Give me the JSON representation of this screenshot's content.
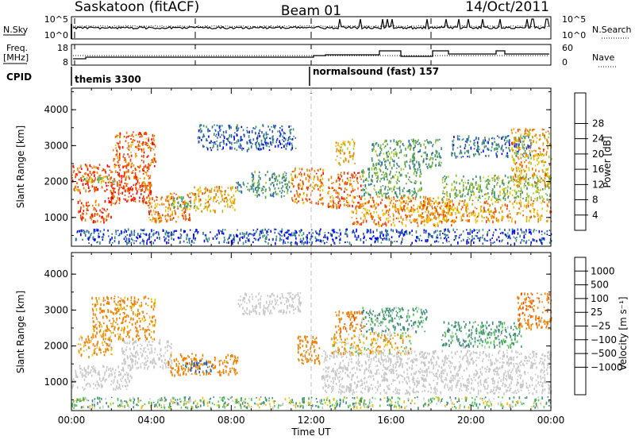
{
  "header": {
    "station": "Saskatoon (fitACF)",
    "beam": "Beam 01",
    "date": "14/Oct/2011"
  },
  "summary": {
    "nsky_label": "N.Sky",
    "nsky_ticks": [
      "10^5",
      "10^0"
    ],
    "nsearch_label": "N.Search",
    "nsearch_ticks": [
      "10^5",
      "10^0"
    ],
    "freq_label_line1": "Freq.",
    "freq_label_line2": "[MHz]",
    "freq_ticks": [
      "18",
      "8"
    ],
    "nave_label": "Nave",
    "nave_ticks": [
      "60",
      "0"
    ],
    "cpid_label": "CPID",
    "cpid_1": "themis 3300",
    "cpid_2": "normalsound (fast) 157"
  },
  "colors": {
    "power": [
      "#0000ff",
      "#2060b0",
      "#3c8c78",
      "#50a050",
      "#a0c820",
      "#f0c000",
      "#f08000",
      "#f04000",
      "#ff0000"
    ],
    "velocity": [
      "#ff0000",
      "#f04000",
      "#f08000",
      "#f0c000",
      "#c8c8c8",
      "#c8c8c8",
      "#50c850",
      "#3c8c78",
      "#2060b0",
      "#2040c0"
    ],
    "ground_scatter": "#c8c8c8"
  },
  "chart_data": [
    {
      "type": "heatmap",
      "panel": "power",
      "ylabel": "Slant Range [km]",
      "yticks": [
        "1000",
        "2000",
        "3000",
        "4000"
      ],
      "ylim": [
        200,
        4600
      ],
      "xlim": [
        0,
        24
      ],
      "xticks": [
        "00:00",
        "04:00",
        "08:00",
        "12:00",
        "16:00",
        "20:00",
        "00:00"
      ],
      "colorbar_label": "Power [dB]",
      "colorbar_ticks": [
        "4",
        "8",
        "12",
        "16",
        "20",
        "24",
        "28"
      ],
      "colorbar_range": [
        0,
        32
      ],
      "regions": [
        {
          "t0": 0.0,
          "t1": 4.0,
          "r0": 1700,
          "r1": 2500,
          "v": 26
        },
        {
          "t0": 2.0,
          "t1": 4.2,
          "r0": 2400,
          "r1": 3400,
          "v": 25
        },
        {
          "t0": 0.5,
          "t1": 2.2,
          "r0": 2000,
          "r1": 2200,
          "v": 14
        },
        {
          "t0": 0.3,
          "t1": 2.0,
          "r0": 900,
          "r1": 1500,
          "v": 27
        },
        {
          "t0": 1.8,
          "t1": 4.0,
          "r0": 1400,
          "r1": 2000,
          "v": 26
        },
        {
          "t0": 3.8,
          "t1": 6.0,
          "r0": 900,
          "r1": 1700,
          "v": 24
        },
        {
          "t0": 5.0,
          "t1": 6.2,
          "r0": 1300,
          "r1": 1600,
          "v": 12
        },
        {
          "t0": 6.0,
          "t1": 8.2,
          "r0": 1200,
          "r1": 1900,
          "v": 21
        },
        {
          "t0": 8.2,
          "t1": 9.4,
          "r0": 1700,
          "r1": 2000,
          "v": 10
        },
        {
          "t0": 6.3,
          "t1": 11.2,
          "r0": 2900,
          "r1": 3600,
          "v": 6
        },
        {
          "t0": 9.0,
          "t1": 11.0,
          "r0": 1600,
          "r1": 2300,
          "v": 10
        },
        {
          "t0": 11.0,
          "t1": 12.6,
          "r0": 1400,
          "r1": 2400,
          "v": 24
        },
        {
          "t0": 12.8,
          "t1": 14.5,
          "r0": 1300,
          "r1": 2300,
          "v": 25
        },
        {
          "t0": 13.2,
          "t1": 14.2,
          "r0": 2500,
          "r1": 3200,
          "v": 20
        },
        {
          "t0": 14.0,
          "t1": 19.0,
          "r0": 800,
          "r1": 1600,
          "v": 23
        },
        {
          "t0": 14.5,
          "t1": 17.5,
          "r0": 1600,
          "r1": 2400,
          "v": 12
        },
        {
          "t0": 15.0,
          "t1": 18.5,
          "r0": 2400,
          "r1": 3200,
          "v": 11
        },
        {
          "t0": 17.5,
          "t1": 24.0,
          "r0": 900,
          "r1": 1500,
          "v": 22
        },
        {
          "t0": 18.5,
          "t1": 24.0,
          "r0": 1500,
          "r1": 2200,
          "v": 14
        },
        {
          "t0": 19.0,
          "t1": 23.0,
          "r0": 2700,
          "r1": 3300,
          "v": 7
        },
        {
          "t0": 22.0,
          "t1": 24.0,
          "r0": 1900,
          "r1": 3500,
          "v": 21
        },
        {
          "t0": 0.0,
          "t1": 24.0,
          "r0": 300,
          "r1": 700,
          "v": 5
        }
      ]
    },
    {
      "type": "heatmap",
      "panel": "velocity",
      "ylabel": "Slant Range [km]",
      "yticks": [
        "1000",
        "2000",
        "3000",
        "4000"
      ],
      "ylim": [
        200,
        4600
      ],
      "xlim": [
        0,
        24
      ],
      "xticks": [
        "00:00",
        "04:00",
        "08:00",
        "12:00",
        "16:00",
        "20:00",
        "00:00"
      ],
      "xlabel": "Time UT",
      "colorbar_label": "Velocity [m s⁻¹]",
      "colorbar_ticks": [
        "1000",
        "500",
        "100",
        "25",
        "−25",
        "−100",
        "−500",
        "−1000"
      ],
      "colorbar_range": [
        -1200,
        1200
      ],
      "regions": [
        {
          "t0": 0.0,
          "t1": 3.0,
          "r0": 800,
          "r1": 1500,
          "v": 0,
          "gs": true
        },
        {
          "t0": 2.5,
          "t1": 5.0,
          "r0": 1400,
          "r1": 2200,
          "v": 0,
          "gs": true
        },
        {
          "t0": 1.0,
          "t1": 4.2,
          "r0": 2200,
          "r1": 3400,
          "v": -200
        },
        {
          "t0": 0.3,
          "t1": 2.0,
          "r0": 1700,
          "r1": 2300,
          "v": -150
        },
        {
          "t0": 4.8,
          "t1": 8.3,
          "r0": 1200,
          "r1": 1800,
          "v": -300
        },
        {
          "t0": 5.5,
          "t1": 7.0,
          "r0": 1300,
          "r1": 1600,
          "v": 600
        },
        {
          "t0": 8.3,
          "t1": 11.5,
          "r0": 2900,
          "r1": 3500,
          "v": 0,
          "gs": true
        },
        {
          "t0": 11.3,
          "t1": 12.5,
          "r0": 1500,
          "r1": 2300,
          "v": -300
        },
        {
          "t0": 13.2,
          "t1": 14.6,
          "r0": 2400,
          "r1": 3000,
          "v": -400
        },
        {
          "t0": 12.5,
          "t1": 24.0,
          "r0": 700,
          "r1": 1900,
          "v": 0,
          "gs": true
        },
        {
          "t0": 13.0,
          "t1": 17.0,
          "r0": 1800,
          "r1": 2400,
          "v": -80
        },
        {
          "t0": 14.5,
          "t1": 17.8,
          "r0": 2400,
          "r1": 3100,
          "v": 150
        },
        {
          "t0": 18.5,
          "t1": 22.5,
          "r0": 2000,
          "r1": 2700,
          "v": 150
        },
        {
          "t0": 22.3,
          "t1": 24.0,
          "r0": 2500,
          "r1": 3500,
          "v": -400
        },
        {
          "t0": 0.0,
          "t1": 24.0,
          "r0": 300,
          "r1": 600,
          "v": 60
        }
      ]
    }
  ]
}
